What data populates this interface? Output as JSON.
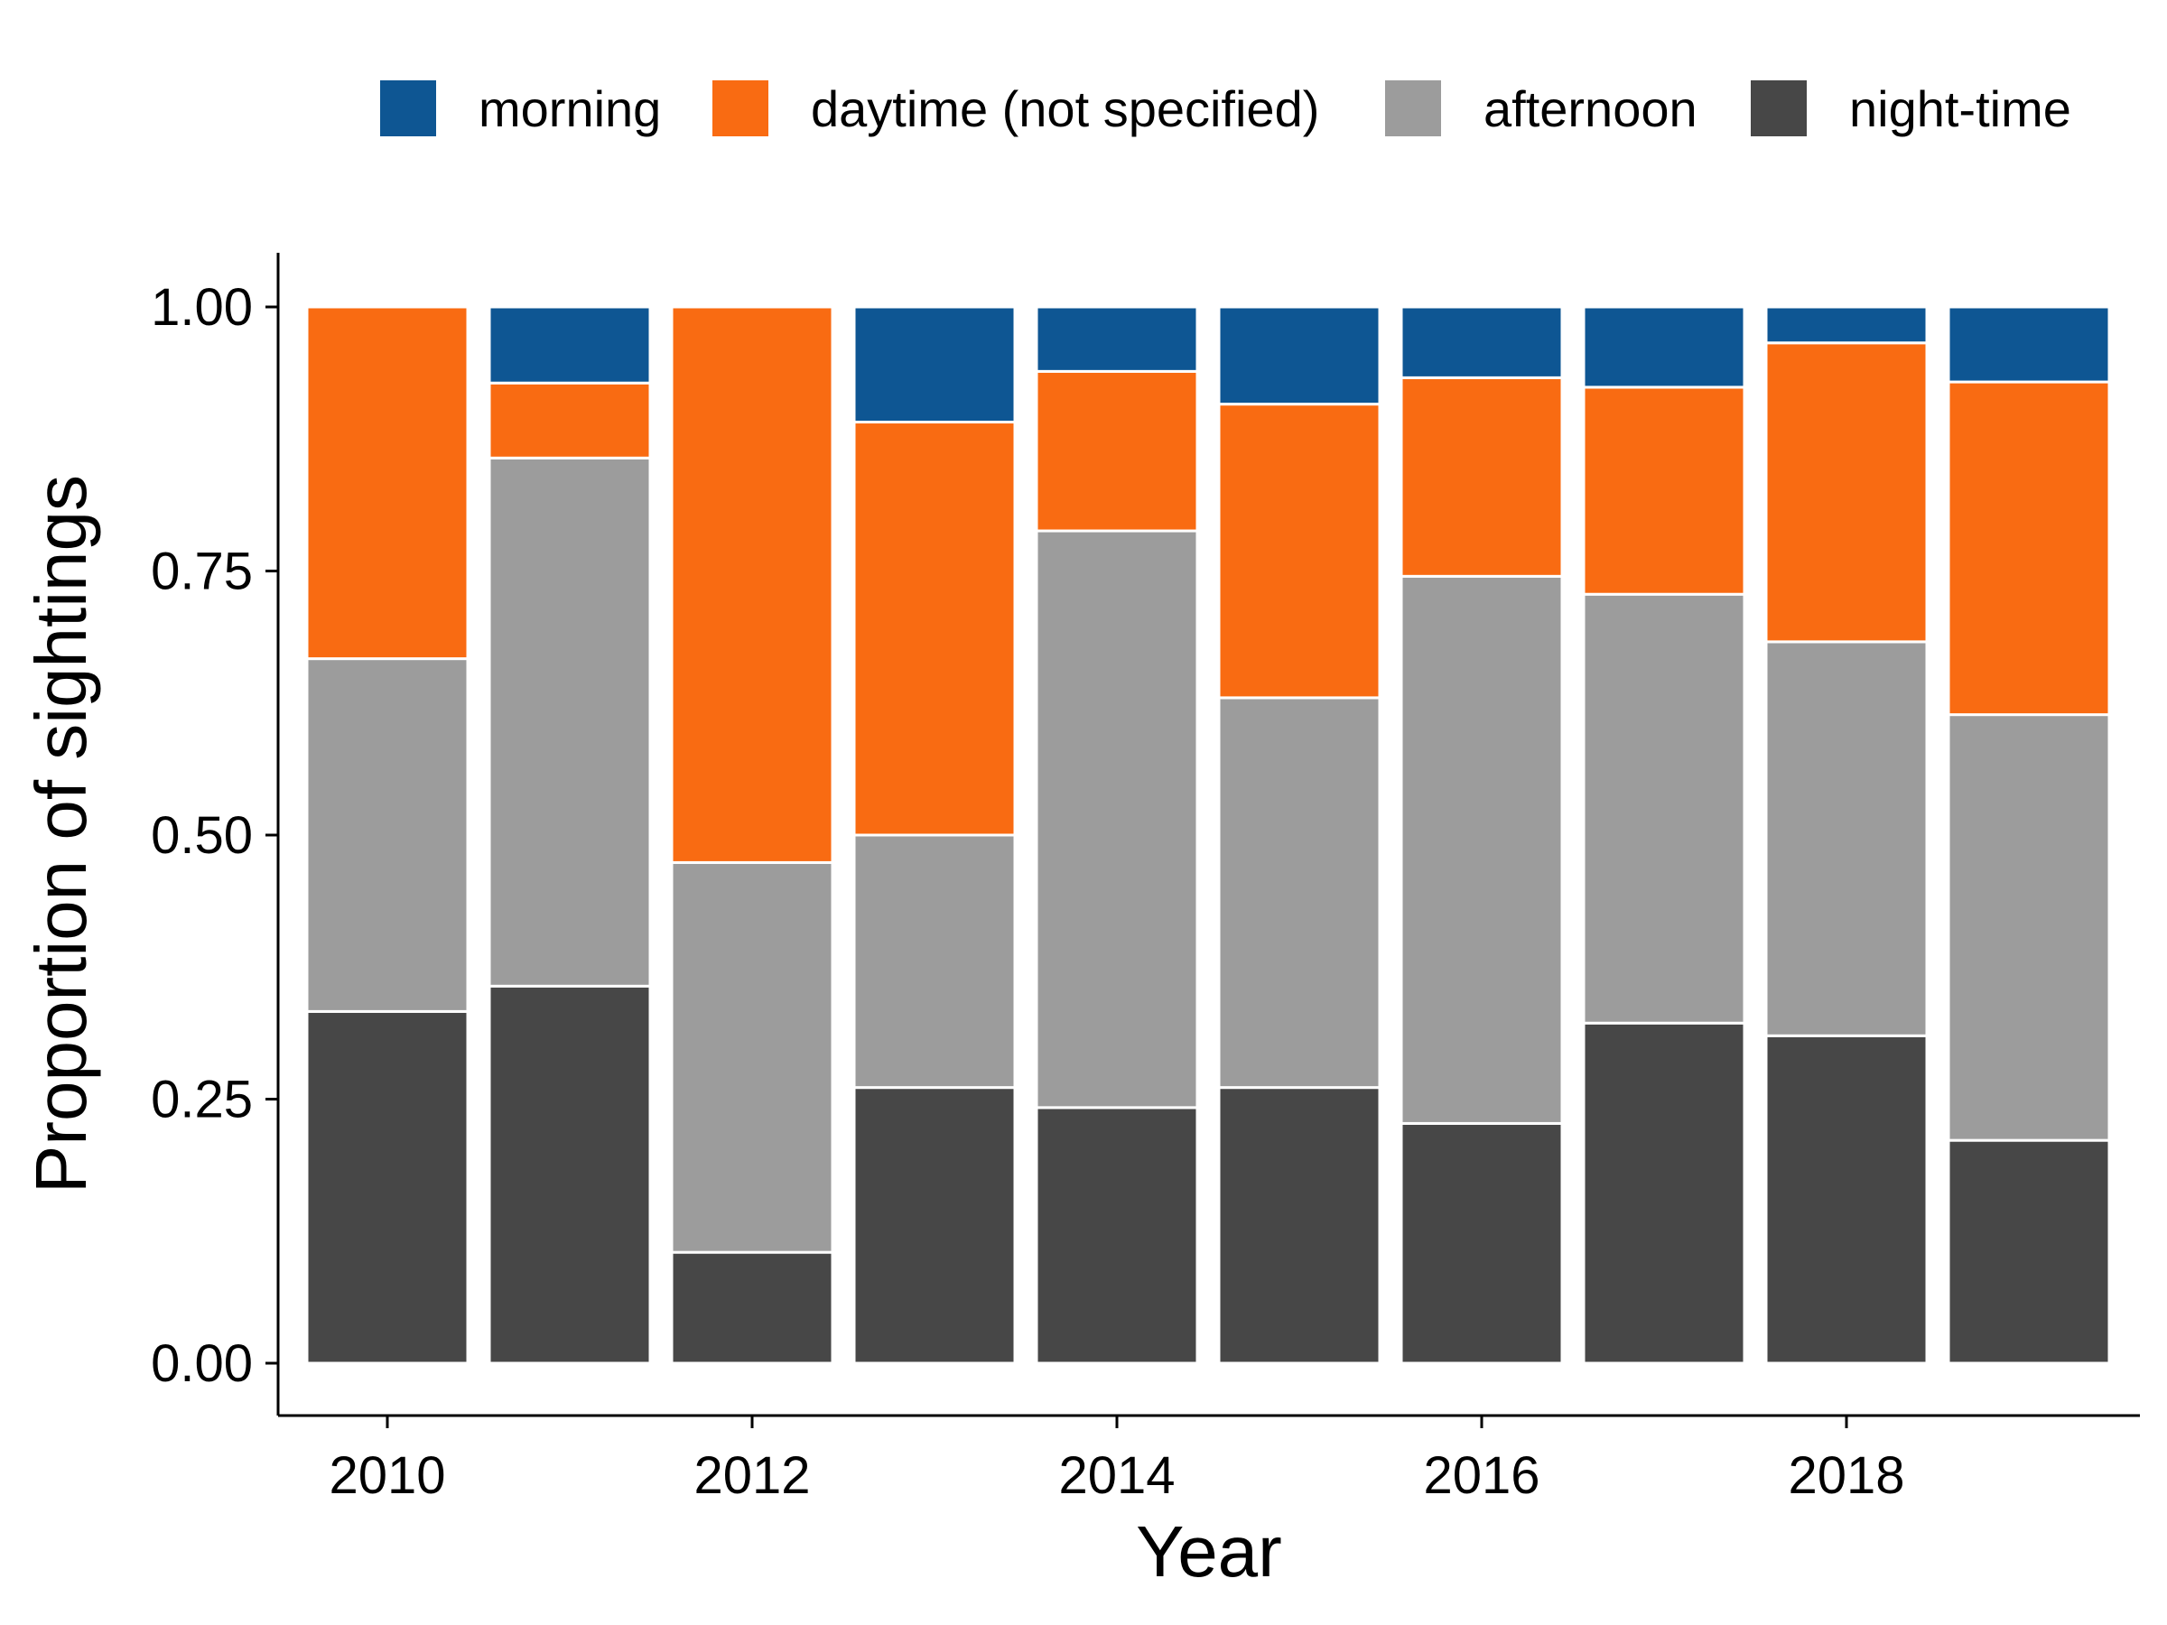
{
  "chart_data": {
    "type": "bar",
    "stacked": true,
    "title": "",
    "xlabel": "Year",
    "ylabel": "Proportion of sightings",
    "ylim": [
      0,
      1
    ],
    "y_ticks": [
      "0.00",
      "0.25",
      "0.50",
      "0.75",
      "1.00"
    ],
    "y_tick_values": [
      0,
      0.25,
      0.5,
      0.75,
      1
    ],
    "x_ticks": [
      "2010",
      "2012",
      "2014",
      "2016",
      "2018"
    ],
    "x_tick_values": [
      2010,
      2012,
      2014,
      2016,
      2018
    ],
    "x": [
      2010,
      2011,
      2012,
      2013,
      2014,
      2015,
      2016,
      2017,
      2018,
      2019
    ],
    "grid": false,
    "legend_position": "top-right",
    "series": [
      {
        "name": "night-time",
        "color": "#474747",
        "values": [
          0.333,
          0.357,
          0.105,
          0.261,
          0.242,
          0.261,
          0.227,
          0.322,
          0.31,
          0.211
        ]
      },
      {
        "name": "afternoon",
        "color": "#9c9c9c",
        "values": [
          0.334,
          0.5,
          0.369,
          0.239,
          0.546,
          0.369,
          0.518,
          0.406,
          0.373,
          0.403
        ]
      },
      {
        "name": "daytime (not specified)",
        "color": "#f96b12",
        "values": [
          0.333,
          0.071,
          0.526,
          0.391,
          0.151,
          0.278,
          0.188,
          0.196,
          0.283,
          0.315
        ]
      },
      {
        "name": "morning",
        "color": "#0e5693",
        "values": [
          0,
          0.072,
          0,
          0.109,
          0.061,
          0.092,
          0.067,
          0.076,
          0.034,
          0.071
        ]
      }
    ],
    "legend_order": [
      "morning",
      "daytime (not specified)",
      "afternoon",
      "night-time"
    ]
  }
}
